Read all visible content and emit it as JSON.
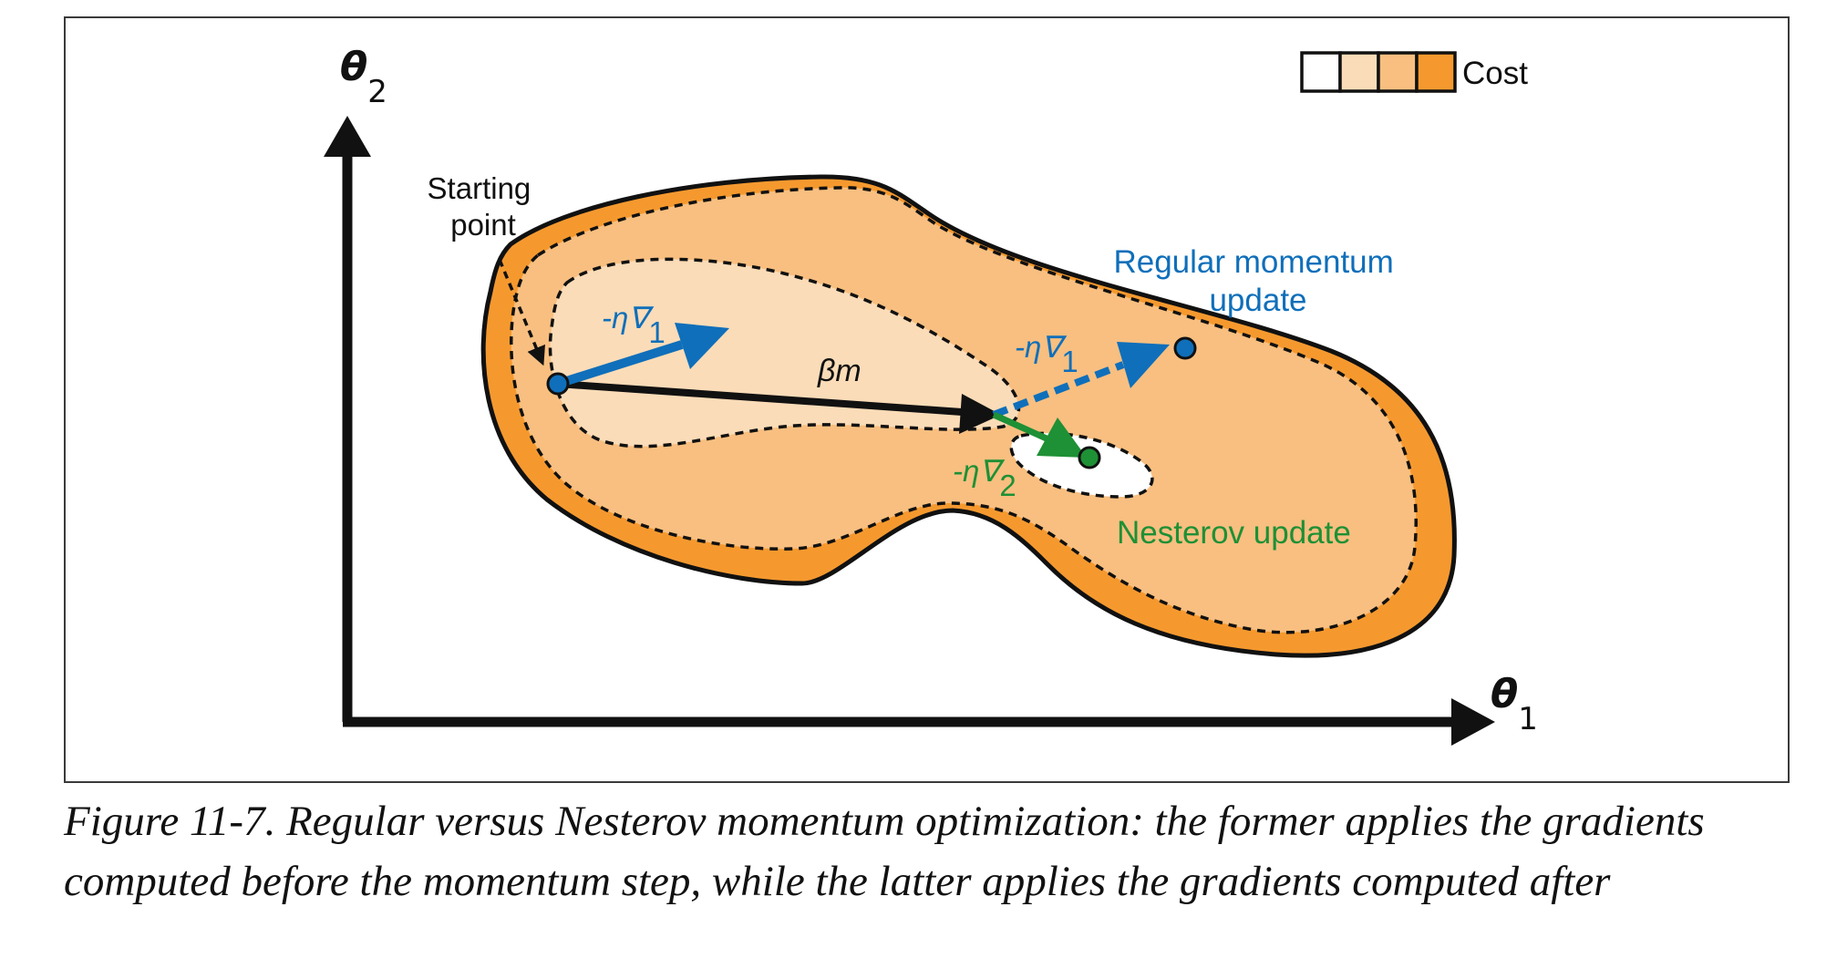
{
  "colors": {
    "cost_levels": [
      "#ffffff",
      "#fbdcb8",
      "#f8bf80",
      "#f5992f"
    ],
    "outline": "#111111",
    "regular": "#0f6fba",
    "nesterov": "#1e9035",
    "momentum": "#111111"
  },
  "legend": {
    "label": "Cost"
  },
  "axes": {
    "x": {
      "symbol": "θ",
      "subscript": "1"
    },
    "y": {
      "symbol": "θ",
      "subscript": "2"
    }
  },
  "labels": {
    "start_line1": "Starting",
    "start_line2": "point",
    "beta_m": "βm",
    "grad1_top": "-η∇",
    "grad1_top_sub": "1",
    "grad1_mid": "-η∇",
    "grad1_mid_sub": "1",
    "grad2": "-η∇",
    "grad2_sub": "2",
    "regular_line1": "Regular momentum",
    "regular_line2": "update",
    "nesterov": "Nesterov update"
  },
  "caption": "Figure 11-7. Regular versus Nesterov momentum optimization: the former applies the gradients computed before the momentum step, while the latter applies the gradients computed after"
}
